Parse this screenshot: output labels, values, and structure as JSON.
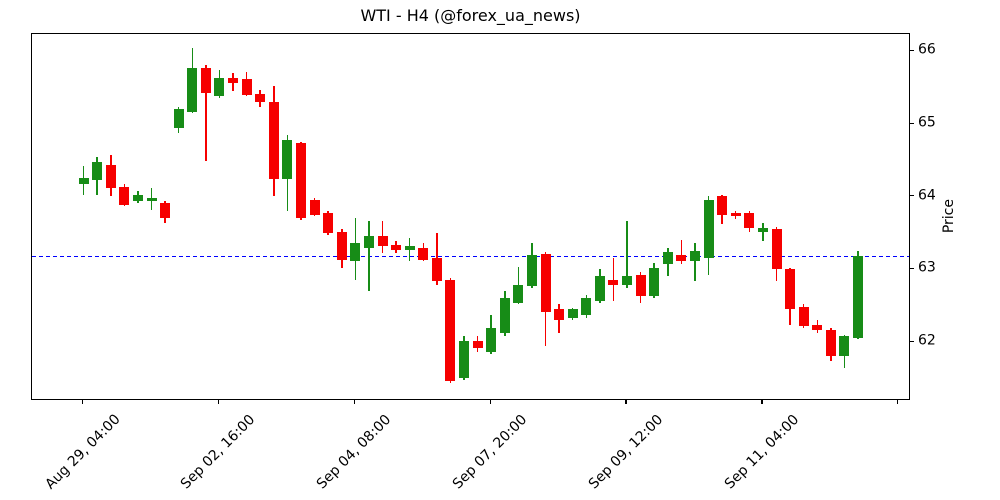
{
  "chart_data": {
    "type": "candlestick",
    "title": "WTI - H4 (@forex_ua_news)",
    "ylabel": "Price",
    "y_ticks": [
      62,
      63,
      64,
      65,
      66
    ],
    "ylim": [
      61.19,
      66.24
    ],
    "xlim": [
      -3.8,
      60.9
    ],
    "grid": false,
    "x_tick_labels": [
      {
        "pos": 0,
        "label": "Aug 29, 04:00"
      },
      {
        "pos": 10,
        "label": "Sep 02, 16:00"
      },
      {
        "pos": 20,
        "label": "Sep 04, 08:00"
      },
      {
        "pos": 30,
        "label": "Sep 07, 20:00"
      },
      {
        "pos": 40,
        "label": "Sep 09, 12:00"
      },
      {
        "pos": 50,
        "label": "Sep 11, 04:00"
      },
      {
        "pos": 60,
        "label": ""
      }
    ],
    "hline": {
      "value": 63.18,
      "color": "#0000ff",
      "style": "dashed"
    },
    "colors": {
      "up": "#178c17",
      "down": "#f60000",
      "axis": "#000000",
      "background": "#ffffff"
    },
    "candle_format": [
      "open",
      "high",
      "low",
      "close"
    ],
    "candles": [
      [
        64.17,
        64.42,
        64.03,
        64.26
      ],
      [
        64.23,
        64.55,
        64.02,
        64.48
      ],
      [
        64.44,
        64.58,
        64.01,
        64.12
      ],
      [
        64.14,
        64.18,
        63.87,
        63.89
      ],
      [
        63.94,
        64.08,
        63.91,
        64.03
      ],
      [
        63.94,
        64.12,
        63.82,
        63.98
      ],
      [
        63.91,
        63.94,
        63.64,
        63.71
      ],
      [
        64.95,
        65.24,
        64.88,
        65.21
      ],
      [
        65.17,
        66.05,
        65.15,
        65.77
      ],
      [
        65.77,
        65.82,
        64.49,
        65.43
      ],
      [
        65.38,
        65.75,
        65.36,
        65.63
      ],
      [
        65.63,
        65.7,
        65.45,
        65.56
      ],
      [
        65.62,
        65.72,
        65.38,
        65.4
      ],
      [
        65.42,
        65.47,
        65.24,
        65.31
      ],
      [
        65.31,
        65.52,
        64.01,
        64.24
      ],
      [
        64.24,
        64.85,
        63.8,
        64.78
      ],
      [
        64.74,
        64.76,
        63.68,
        63.71
      ],
      [
        63.96,
        63.99,
        63.73,
        63.75
      ],
      [
        63.78,
        63.8,
        63.48,
        63.5
      ],
      [
        63.52,
        63.55,
        63.02,
        63.13
      ],
      [
        63.11,
        63.71,
        62.86,
        63.36
      ],
      [
        63.29,
        63.67,
        62.7,
        63.46
      ],
      [
        63.46,
        63.66,
        63.23,
        63.32
      ],
      [
        63.34,
        63.39,
        63.23,
        63.27
      ],
      [
        63.27,
        63.43,
        63.11,
        63.32
      ],
      [
        63.29,
        63.36,
        63.11,
        63.13
      ],
      [
        63.16,
        63.5,
        62.79,
        62.84
      ],
      [
        62.86,
        62.88,
        61.44,
        61.46
      ],
      [
        61.51,
        62.08,
        61.48,
        62.01
      ],
      [
        62.01,
        62.08,
        61.87,
        61.92
      ],
      [
        61.87,
        62.38,
        61.83,
        62.19
      ],
      [
        62.13,
        62.7,
        62.08,
        62.61
      ],
      [
        62.54,
        63.04,
        62.52,
        62.79
      ],
      [
        62.77,
        63.36,
        62.74,
        63.2
      ],
      [
        63.21,
        63.24,
        61.94,
        62.42
      ],
      [
        62.45,
        62.52,
        62.13,
        62.31
      ],
      [
        62.33,
        62.47,
        62.31,
        62.45
      ],
      [
        62.38,
        62.65,
        62.33,
        62.61
      ],
      [
        62.56,
        63.0,
        62.54,
        62.91
      ],
      [
        62.86,
        63.16,
        62.56,
        62.79
      ],
      [
        62.79,
        63.66,
        62.74,
        62.91
      ],
      [
        62.93,
        62.97,
        62.54,
        62.63
      ],
      [
        62.63,
        63.09,
        62.61,
        63.02
      ],
      [
        63.07,
        63.3,
        62.91,
        63.24
      ],
      [
        63.2,
        63.41,
        63.07,
        63.11
      ],
      [
        63.11,
        63.36,
        62.84,
        63.25
      ],
      [
        63.16,
        64.01,
        62.93,
        63.96
      ],
      [
        64.01,
        64.03,
        63.62,
        63.75
      ],
      [
        63.78,
        63.8,
        63.69,
        63.73
      ],
      [
        63.78,
        63.8,
        63.52,
        63.57
      ],
      [
        63.52,
        63.64,
        63.39,
        63.57
      ],
      [
        63.55,
        63.59,
        62.84,
        63.0
      ],
      [
        63.0,
        63.02,
        62.24,
        62.45
      ],
      [
        62.49,
        62.52,
        62.19,
        62.22
      ],
      [
        62.24,
        62.31,
        62.13,
        62.17
      ],
      [
        62.17,
        62.19,
        61.74,
        61.81
      ],
      [
        61.81,
        62.1,
        61.64,
        62.08
      ],
      [
        62.06,
        63.25,
        62.04,
        63.18
      ]
    ]
  }
}
